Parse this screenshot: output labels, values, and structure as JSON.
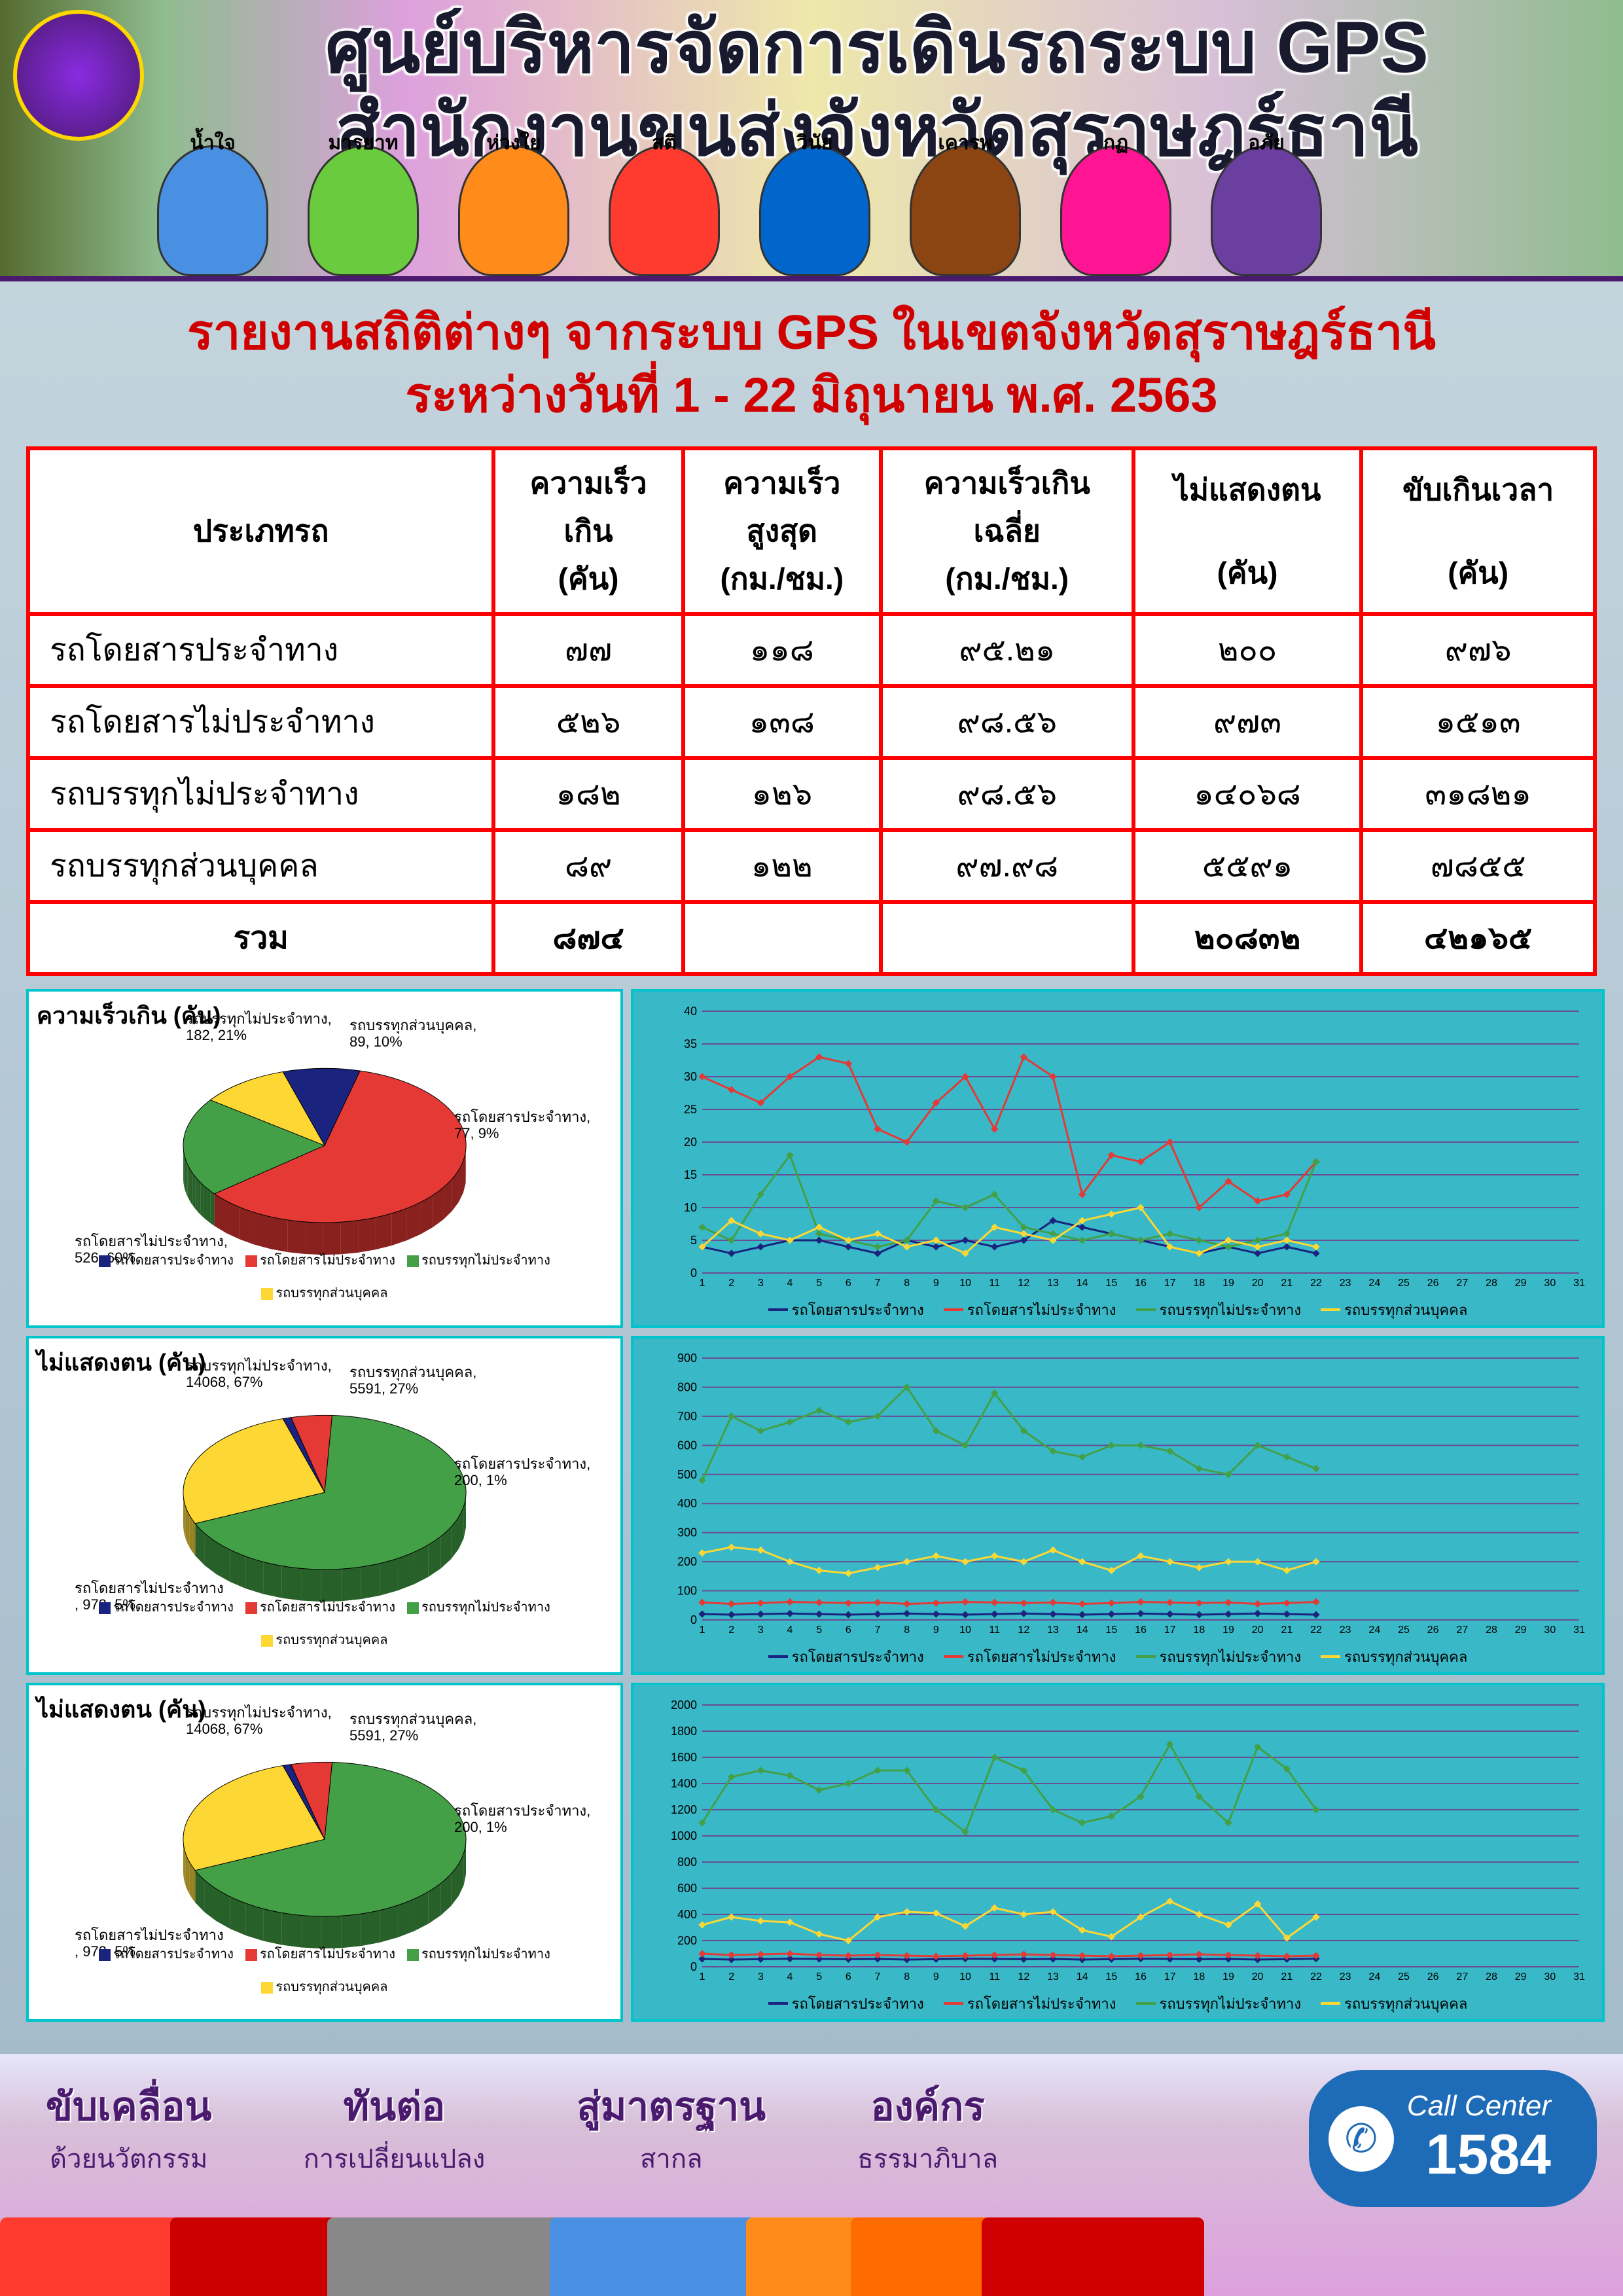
{
  "header": {
    "title_line1": "ศูนย์บริหารจัดการเดินรถระบบ  GPS",
    "title_line2": "สำนักงานขนส่งจังหวัดสุราษฎร์ธานี",
    "mascots": [
      "น้ำใจ",
      "มารยาท",
      "ห่วงใย",
      "สติ",
      "วินัย",
      "เคารพ",
      "กฏ",
      "อภัย"
    ]
  },
  "report": {
    "title_line1": "รายงานสถิติต่างๆ จากระบบ GPS ในเขตจังหวัดสุราษฎร์ธานี",
    "title_line2": "ระหว่างวันที่ 1 - 22 มิถุนายน พ.ศ. 2563"
  },
  "table": {
    "columns": [
      "ประเภทรถ",
      "ความเร็ว\nเกิน\n(คัน)",
      "ความเร็ว\nสูงสุด\n(กม./ชม.)",
      "ความเร็วเกิน\nเฉลี่ย\n(กม./ชม.)",
      "ไม่แสดงตน\n\n(คัน)",
      "ขับเกินเวลา\n\n(คัน)"
    ],
    "rows": [
      [
        "รถโดยสารประจำทาง",
        "๗๗",
        "๑๑๘",
        "๙๕.๒๑",
        "๒๐๐",
        "๙๗๖"
      ],
      [
        "รถโดยสารไม่ประจำทาง",
        "๕๒๖",
        "๑๓๘",
        "๙๘.๕๖",
        "๙๗๓",
        "๑๕๑๓"
      ],
      [
        "รถบรรทุกไม่ประจำทาง",
        "๑๘๒",
        "๑๒๖",
        "๙๘.๕๖",
        "๑๔๐๖๘",
        "๓๑๘๒๑"
      ],
      [
        "รถบรรทุกส่วนบุคคล",
        "๘๙",
        "๑๒๒",
        "๙๗.๙๘",
        "๕๕๙๑",
        "๗๘๕๕"
      ]
    ],
    "total_label": "รวม",
    "total": [
      "๘๗๔",
      "",
      "",
      "๒๐๘๓๒",
      "๔๒๑๖๕"
    ]
  },
  "series_labels": [
    "รถโดยสารประจำทาง",
    "รถโดยสารไม่ประจำทาง",
    "รถบรรทุกไม่ประจำทาง",
    "รถบรรทุกส่วนบุคคล"
  ],
  "series_colors": [
    "#1a237e",
    "#e53935",
    "#43a047",
    "#fdd835"
  ],
  "pie1": {
    "title": "ความเร็วเกิน  (คัน)",
    "values": [
      77,
      526,
      182,
      89
    ],
    "percents": [
      9,
      60,
      21,
      10
    ],
    "labels_text": [
      "รถโดยสารประจำทาง,\n77, 9%",
      "รถโดยสารไม่ประจำทาง,\n526, 60%",
      "รถบรรทุกไม่ประจำทาง,\n182, 21%",
      "รถบรรทุกส่วนบุคคล,\n89, 10%"
    ]
  },
  "pie2": {
    "title": "ไม่แสดงตน (คัน)",
    "values": [
      200,
      973,
      14068,
      5591
    ],
    "percents": [
      1,
      5,
      67,
      27
    ],
    "labels_text": [
      "รถโดยสารประจำทาง,\n200, 1%",
      "รถโดยสารไม่ประจำทาง\n, 973, 5%",
      "รถบรรทุกไม่ประจำทาง,\n14068, 67%",
      "รถบรรทุกส่วนบุคคล,\n5591, 27%"
    ]
  },
  "pie3": {
    "title": "ไม่แสดงตน (คัน)",
    "values": [
      200,
      973,
      14068,
      5591
    ],
    "percents": [
      1,
      5,
      67,
      27
    ],
    "labels_text": [
      "รถโดยสารประจำทาง,\n200, 1%",
      "รถโดยสารไม่ประจำทาง\n, 973, 5%",
      "รถบรรทุกไม่ประจำทาง,\n14068, 67%",
      "รถบรรทุกส่วนบุคคล,\n5591, 27%"
    ]
  },
  "line1": {
    "ylim": [
      0,
      40
    ],
    "ytick_step": 5,
    "x_days": 31,
    "x_data_to": 22,
    "series": [
      [
        4,
        3,
        4,
        5,
        5,
        4,
        3,
        5,
        4,
        5,
        4,
        5,
        8,
        7,
        6,
        5,
        4,
        3,
        4,
        3,
        4,
        3
      ],
      [
        30,
        28,
        26,
        30,
        33,
        32,
        22,
        20,
        26,
        30,
        22,
        33,
        30,
        12,
        18,
        17,
        20,
        10,
        14,
        11,
        12,
        17
      ],
      [
        7,
        5,
        12,
        18,
        6,
        5,
        4,
        5,
        11,
        10,
        12,
        7,
        6,
        5,
        6,
        5,
        6,
        5,
        4,
        5,
        6,
        17
      ],
      [
        4,
        8,
        6,
        5,
        7,
        5,
        6,
        4,
        5,
        3,
        7,
        6,
        5,
        8,
        9,
        10,
        4,
        3,
        5,
        4,
        5,
        4
      ]
    ]
  },
  "line2": {
    "ylim": [
      0,
      900
    ],
    "ytick_step": 100,
    "x_days": 31,
    "x_data_to": 22,
    "series": [
      [
        20,
        18,
        20,
        22,
        20,
        18,
        20,
        22,
        20,
        18,
        20,
        22,
        20,
        18,
        20,
        22,
        20,
        18,
        20,
        22,
        20,
        18
      ],
      [
        60,
        55,
        58,
        62,
        60,
        58,
        60,
        55,
        58,
        62,
        60,
        58,
        60,
        55,
        58,
        62,
        60,
        58,
        60,
        55,
        58,
        62
      ],
      [
        480,
        700,
        650,
        680,
        720,
        680,
        700,
        800,
        650,
        600,
        780,
        650,
        580,
        560,
        600,
        600,
        580,
        520,
        500,
        600,
        560,
        520
      ],
      [
        230,
        250,
        240,
        200,
        170,
        160,
        180,
        200,
        220,
        200,
        220,
        200,
        240,
        200,
        170,
        220,
        200,
        180,
        200,
        200,
        170,
        200
      ]
    ]
  },
  "line3": {
    "ylim": [
      0,
      2000
    ],
    "ytick_step": 200,
    "x_days": 31,
    "x_data_to": 22,
    "series": [
      [
        60,
        55,
        58,
        62,
        60,
        58,
        60,
        55,
        58,
        62,
        60,
        58,
        60,
        55,
        58,
        62,
        60,
        58,
        60,
        55,
        58,
        62
      ],
      [
        100,
        90,
        95,
        100,
        90,
        85,
        90,
        85,
        80,
        85,
        90,
        95,
        90,
        85,
        80,
        85,
        90,
        95,
        90,
        85,
        80,
        85
      ],
      [
        1100,
        1450,
        1500,
        1460,
        1350,
        1400,
        1500,
        1500,
        1200,
        1030,
        1600,
        1500,
        1200,
        1100,
        1150,
        1300,
        1700,
        1300,
        1100,
        1680,
        1512,
        1200
      ],
      [
        320,
        380,
        350,
        340,
        250,
        200,
        380,
        420,
        410,
        310,
        450,
        400,
        420,
        280,
        230,
        380,
        500,
        400,
        320,
        480,
        220,
        380
      ]
    ]
  },
  "footer": {
    "slogans": [
      {
        "big": "ขับเคลื่อน",
        "small": "ด้วยนวัตกรรม"
      },
      {
        "big": "ทันต่อ",
        "small": "การเปลี่ยนแปลง"
      },
      {
        "big": "สู่มาตรฐาน",
        "small": "สากล"
      },
      {
        "big": "องค์กร",
        "small": "ธรรมาภิบาล"
      }
    ],
    "call_center": {
      "label": "Call Center",
      "number": "1584"
    }
  }
}
